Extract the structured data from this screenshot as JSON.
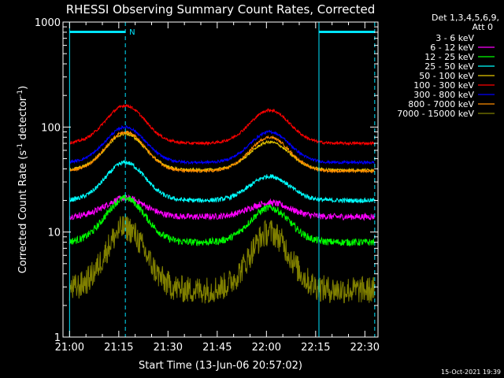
{
  "footer_stamp": "15-Oct-2021 19:39",
  "chart_data": {
    "type": "line",
    "title": "RHESSI Observing Summary Count Rates, Corrected",
    "xlabel": "Start Time (13-Jun-06 20:57:02)",
    "ylabel_main": "Corrected Count Rate (s",
    "ylabel_sup1": "-1",
    "ylabel_mid": " detector",
    "ylabel_sup2": "-1",
    "ylabel_end": ")",
    "y_scale": "log",
    "ylim": [
      1,
      1000
    ],
    "xlim_minutes": [
      -2,
      94
    ],
    "x_tick_labels": [
      "21:00",
      "21:15",
      "21:30",
      "21:45",
      "22:00",
      "22:15",
      "22:30"
    ],
    "x_tick_minutes": [
      0,
      15,
      30,
      45,
      60,
      75,
      90
    ],
    "y_tick_labels": [
      "1",
      "10",
      "100",
      "1000"
    ],
    "y_tick_values": [
      1,
      10,
      100,
      1000
    ],
    "legend_header": [
      "Det 1,3,4,5,6,9,",
      "Att 0"
    ],
    "legend_position": "top-right",
    "annotations": {
      "night_label": "N",
      "day_boundaries_minutes": [
        0,
        17,
        76,
        93
      ],
      "bar_spans_minutes": [
        [
          0,
          17
        ],
        [
          76,
          93
        ]
      ]
    },
    "series": [
      {
        "name": "3 - 6 keV",
        "color": "#000000",
        "base": 2.6,
        "peak1": 10,
        "peak2": 9,
        "noise": 0.35
      },
      {
        "name": "6 - 12 keV",
        "color": "#ff00ff",
        "base": 14,
        "peak1": 21,
        "peak2": 19,
        "noise": 0.07
      },
      {
        "name": "12 - 25 keV",
        "color": "#00ff00",
        "base": 8,
        "peak1": 21,
        "peak2": 17,
        "noise": 0.08
      },
      {
        "name": "25 - 50 keV",
        "color": "#00ffff",
        "base": 20,
        "peak1": 46,
        "peak2": 34,
        "noise": 0.05
      },
      {
        "name": "50 - 100 keV",
        "color": "#e6c800",
        "base": 39,
        "peak1": 86,
        "peak2": 72,
        "noise": 0.03
      },
      {
        "name": "100 - 300 keV",
        "color": "#ff0000",
        "base": 70,
        "peak1": 160,
        "peak2": 145,
        "noise": 0.03
      },
      {
        "name": "300 - 800 keV",
        "color": "#0000ff",
        "base": 46,
        "peak1": 100,
        "peak2": 90,
        "noise": 0.03
      },
      {
        "name": "800 - 7000 keV",
        "color": "#ff8c00",
        "base": 38,
        "peak1": 90,
        "peak2": 80,
        "noise": 0.03
      },
      {
        "name": "7000 - 15000 keV",
        "color": "#808000",
        "base": 2.8,
        "peak1": 11,
        "peak2": 10,
        "noise": 0.3
      }
    ],
    "peak_minutes": [
      17,
      61
    ],
    "peak_width_minutes": 8.5
  }
}
